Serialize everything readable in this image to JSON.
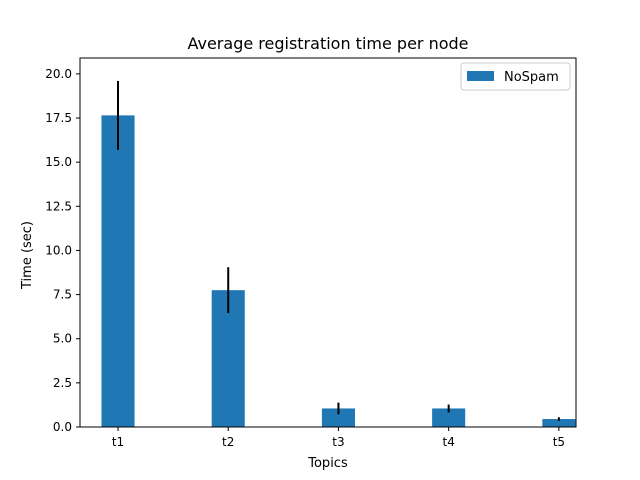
{
  "chart_data": {
    "type": "bar",
    "title": "Average registration time per node",
    "xlabel": "Topics",
    "ylabel": "Time (sec)",
    "categories": [
      "t1",
      "t2",
      "t3",
      "t4",
      "t5"
    ],
    "series": [
      {
        "name": "NoSpam",
        "values": [
          17.65,
          7.75,
          1.05,
          1.05,
          0.45
        ],
        "errors": [
          1.95,
          1.3,
          0.33,
          0.22,
          0.1
        ],
        "color": "#1f77b4"
      }
    ],
    "ylim": [
      0,
      20.9
    ],
    "yticks": [
      0.0,
      2.5,
      5.0,
      7.5,
      10.0,
      12.5,
      15.0,
      17.5,
      20.0
    ],
    "ytick_labels": [
      "0.0",
      "2.5",
      "5.0",
      "7.5",
      "10.0",
      "12.5",
      "15.0",
      "17.5",
      "20.0"
    ],
    "grid": false,
    "legend_position": "top-right"
  }
}
